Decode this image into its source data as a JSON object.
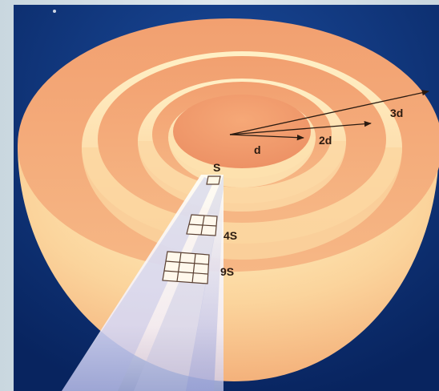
{
  "labels": {
    "d": "d",
    "two_d": "2d",
    "three_d": "3d",
    "s": "S",
    "four_s": "4S",
    "nine_s": "9S"
  },
  "colors": {
    "background": "#0a2a6e",
    "shell_light": "#fff3c8",
    "shell_mid": "#f9c28f",
    "shell_dark": "#e89468",
    "text": "#2a1a10"
  }
}
